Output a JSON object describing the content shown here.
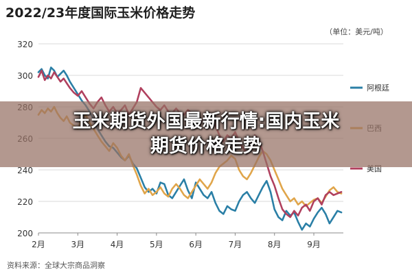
{
  "banner": {
    "line1": "玉米期货外国最新行情:国内玉米",
    "line2": "期货价格走势"
  },
  "chart_data": {
    "type": "line",
    "title": "2022/23年度国际玉米价格走势",
    "unit_note": "（单位：美元/吨）",
    "source": "资料来源：全球大宗商品洞察",
    "ylim": [
      200,
      320
    ],
    "yticks": [
      "200",
      "220",
      "240",
      "260",
      "280",
      "300",
      "320"
    ],
    "x_months": [
      "2月",
      "3月",
      "4月",
      "5月",
      "6月",
      "7月",
      "8月",
      "9月"
    ],
    "xlim": [
      0,
      7.75
    ],
    "grid": true,
    "legend_position": "right",
    "colors": {
      "argentina": "#2a7fa6",
      "brazil": "#e0a54a",
      "usa": "#b0405e"
    },
    "series": [
      {
        "name": "阿根廷",
        "color": "#2a7fa6",
        "x": [
          0.0,
          0.08,
          0.16,
          0.24,
          0.32,
          0.4,
          0.48,
          0.56,
          0.64,
          0.72,
          0.8,
          0.9,
          1.0,
          1.1,
          1.2,
          1.3,
          1.4,
          1.5,
          1.6,
          1.7,
          1.8,
          1.9,
          2.0,
          2.1,
          2.2,
          2.3,
          2.4,
          2.5,
          2.6,
          2.7,
          2.8,
          2.9,
          3.0,
          3.1,
          3.2,
          3.3,
          3.4,
          3.5,
          3.6,
          3.7,
          3.8,
          3.9,
          4.0,
          4.1,
          4.2,
          4.3,
          4.4,
          4.5,
          4.6,
          4.7,
          4.8,
          4.9,
          5.0,
          5.1,
          5.2,
          5.3,
          5.4,
          5.5,
          5.6,
          5.7,
          5.8,
          5.9,
          6.0,
          6.1,
          6.2,
          6.3,
          6.4,
          6.5,
          6.6,
          6.7,
          6.8,
          6.9,
          7.0,
          7.1,
          7.2,
          7.3,
          7.4,
          7.5,
          7.6,
          7.7
        ],
        "values": [
          302,
          304,
          300,
          298,
          305,
          303,
          299,
          301,
          303,
          300,
          296,
          292,
          288,
          284,
          281,
          277,
          272,
          266,
          262,
          258,
          255,
          254,
          251,
          248,
          246,
          249,
          244,
          241,
          235,
          229,
          226,
          228,
          225,
          232,
          231,
          224,
          222,
          226,
          230,
          234,
          227,
          222,
          232,
          228,
          224,
          222,
          226,
          219,
          214,
          212,
          217,
          215,
          214,
          220,
          224,
          226,
          222,
          219,
          224,
          229,
          233,
          226,
          215,
          210,
          208,
          214,
          211,
          213,
          207,
          202,
          206,
          204,
          209,
          213,
          216,
          212,
          206,
          210,
          214,
          213
        ]
      },
      {
        "name": "巴西",
        "color": "#e0a54a",
        "x": [
          0.0,
          0.08,
          0.16,
          0.24,
          0.32,
          0.4,
          0.48,
          0.56,
          0.64,
          0.72,
          0.8,
          0.9,
          1.0,
          1.1,
          1.2,
          1.3,
          1.4,
          1.5,
          1.6,
          1.7,
          1.8,
          1.9,
          2.0,
          2.1,
          2.2,
          2.3,
          2.4,
          2.5,
          2.6,
          2.7,
          2.8,
          2.9,
          3.0,
          3.1,
          3.2,
          3.3,
          3.4,
          3.5,
          3.6,
          3.7,
          3.8,
          3.9,
          4.0,
          4.1,
          4.2,
          4.3,
          4.4,
          4.5,
          4.6,
          4.7,
          4.8,
          4.9,
          5.0,
          5.1,
          5.2,
          5.3,
          5.4,
          5.5,
          5.6,
          5.7,
          5.8,
          5.9,
          6.0,
          6.1,
          6.2,
          6.3,
          6.4,
          6.5,
          6.6,
          6.7,
          6.8,
          6.9,
          7.0,
          7.1,
          7.2,
          7.3,
          7.4,
          7.5,
          7.6,
          7.7
        ],
        "values": [
          275,
          278,
          276,
          279,
          277,
          280,
          276,
          273,
          271,
          274,
          270,
          268,
          266,
          272,
          275,
          270,
          266,
          262,
          258,
          255,
          252,
          257,
          254,
          249,
          246,
          250,
          243,
          237,
          230,
          225,
          228,
          224,
          226,
          229,
          225,
          223,
          228,
          231,
          228,
          224,
          222,
          226,
          230,
          234,
          231,
          228,
          232,
          238,
          242,
          244,
          246,
          249,
          247,
          240,
          236,
          234,
          238,
          243,
          248,
          252,
          250,
          246,
          240,
          234,
          228,
          224,
          220,
          222,
          218,
          220,
          217,
          219,
          221,
          222,
          219,
          223,
          227,
          229,
          226,
          225
        ]
      },
      {
        "name": "美国",
        "color": "#b0405e",
        "x": [
          0.0,
          0.08,
          0.16,
          0.24,
          0.32,
          0.4,
          0.48,
          0.56,
          0.64,
          0.72,
          0.8,
          0.9,
          1.0,
          1.1,
          1.2,
          1.3,
          1.4,
          1.5,
          1.6,
          1.7,
          1.8,
          1.9,
          2.0,
          2.1,
          2.2,
          2.3,
          2.4,
          2.5,
          2.6,
          2.7,
          2.8,
          2.9,
          3.0,
          3.1,
          3.2,
          3.3,
          3.4,
          3.5,
          3.6,
          3.7,
          3.8,
          3.9,
          4.0,
          4.1,
          4.2,
          4.3,
          4.4,
          4.5,
          4.6,
          4.7,
          4.8,
          4.9,
          5.0,
          5.1,
          5.2,
          5.3,
          5.4,
          5.5,
          5.6,
          5.7,
          5.8,
          5.9,
          6.0,
          6.1,
          6.2,
          6.3,
          6.4,
          6.5,
          6.6,
          6.7,
          6.8,
          6.9,
          7.0,
          7.1,
          7.2,
          7.3,
          7.4,
          7.5,
          7.6,
          7.7
        ],
        "values": [
          299,
          303,
          297,
          300,
          298,
          302,
          299,
          296,
          298,
          295,
          292,
          289,
          287,
          290,
          286,
          282,
          279,
          283,
          286,
          281,
          277,
          280,
          276,
          278,
          281,
          275,
          279,
          283,
          292,
          289,
          286,
          283,
          280,
          278,
          281,
          277,
          276,
          279,
          276,
          275,
          278,
          276,
          272,
          269,
          273,
          270,
          275,
          268,
          262,
          258,
          262,
          260,
          264,
          258,
          254,
          250,
          256,
          262,
          259,
          252,
          244,
          236,
          230,
          222,
          215,
          212,
          210,
          214,
          211,
          216,
          218,
          214,
          220,
          222,
          218,
          224,
          226,
          224,
          225,
          226
        ]
      }
    ]
  }
}
